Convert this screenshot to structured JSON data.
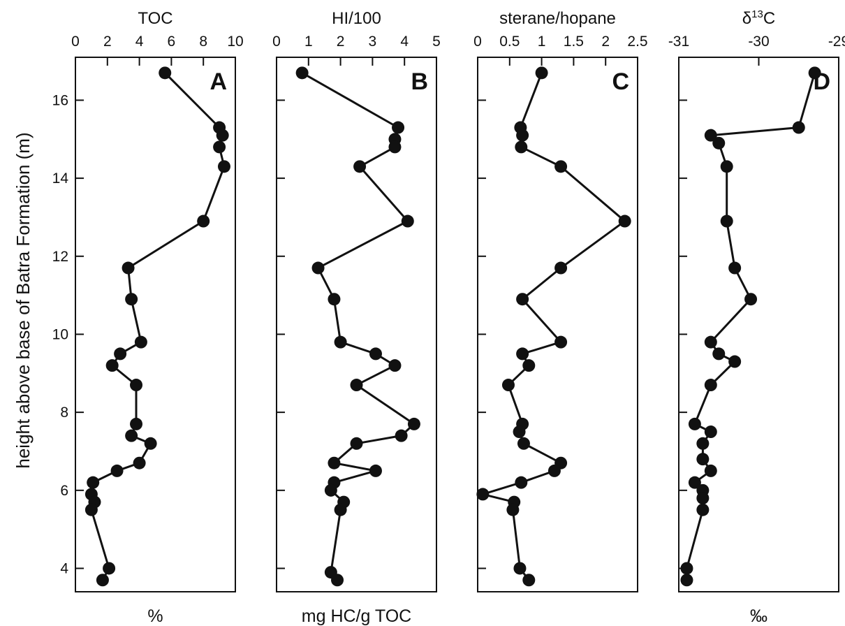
{
  "figure": {
    "ylabel": "height above base of Batra Formation (m)"
  },
  "chart_data": [
    {
      "type": "line",
      "panel": "A",
      "title": "TOC",
      "xlabel": "%",
      "ylabel": "height above base of Batra Formation (m)",
      "xlim": [
        0,
        10
      ],
      "xticks": [
        "0",
        "2",
        "4",
        "6",
        "8",
        "10"
      ],
      "ylim": [
        3.4,
        17.1
      ],
      "yticks": [
        "4",
        "6",
        "8",
        "10",
        "12",
        "14",
        "16"
      ],
      "grid": false,
      "series": [
        {
          "x": [
            5.6,
            9.0,
            9.2,
            9.0,
            9.3,
            8.0,
            3.3,
            3.5,
            4.1,
            2.8,
            2.3,
            3.8,
            3.8,
            3.5,
            4.7,
            4.0,
            2.6,
            1.1,
            1.0,
            1.2,
            1.0,
            2.1,
            1.7
          ],
          "y": [
            16.7,
            15.3,
            15.1,
            14.8,
            14.3,
            12.9,
            11.7,
            10.9,
            9.8,
            9.5,
            9.2,
            8.7,
            7.7,
            7.4,
            7.2,
            6.7,
            6.5,
            6.2,
            5.9,
            5.7,
            5.5,
            4.0,
            3.7
          ]
        }
      ]
    },
    {
      "type": "line",
      "panel": "B",
      "title": "HI/100",
      "xlabel": "mg HC/g TOC",
      "ylim": [
        3.4,
        17.1
      ],
      "xlim": [
        0,
        5
      ],
      "xticks": [
        "0",
        "1",
        "2",
        "3",
        "4",
        "5"
      ],
      "grid": false,
      "series": [
        {
          "x": [
            0.8,
            3.8,
            3.7,
            3.7,
            2.6,
            4.1,
            1.3,
            1.8,
            2.0,
            3.1,
            3.7,
            2.5,
            4.3,
            3.9,
            2.5,
            1.8,
            3.1,
            1.8,
            1.7,
            2.1,
            2.0,
            1.7,
            1.9
          ],
          "y": [
            16.7,
            15.3,
            15.0,
            14.8,
            14.3,
            12.9,
            11.7,
            10.9,
            9.8,
            9.5,
            9.2,
            8.7,
            7.7,
            7.4,
            7.2,
            6.7,
            6.5,
            6.2,
            6.0,
            5.7,
            5.5,
            3.9,
            3.7
          ]
        }
      ]
    },
    {
      "type": "line",
      "panel": "C",
      "title": "sterane/hopane",
      "xlabel": "",
      "ylim": [
        3.4,
        17.1
      ],
      "xlim": [
        0,
        2.5
      ],
      "xticks": [
        "0",
        "0.5",
        "1",
        "1.5",
        "2",
        "2.5"
      ],
      "grid": false,
      "series": [
        {
          "x": [
            1.0,
            0.67,
            0.7,
            0.68,
            1.3,
            2.3,
            1.3,
            0.7,
            1.3,
            0.7,
            0.8,
            0.48,
            0.7,
            0.65,
            0.72,
            1.3,
            1.2,
            0.68,
            0.08,
            0.57,
            0.55,
            0.66,
            0.8
          ],
          "y": [
            16.7,
            15.3,
            15.1,
            14.8,
            14.3,
            12.9,
            11.7,
            10.9,
            9.8,
            9.5,
            9.2,
            8.7,
            7.7,
            7.5,
            7.2,
            6.7,
            6.5,
            6.2,
            5.9,
            5.7,
            5.5,
            4.0,
            3.7
          ]
        }
      ]
    },
    {
      "type": "line",
      "panel": "D",
      "title": "δ13C",
      "xlabel": "‰",
      "ylim": [
        3.4,
        17.1
      ],
      "xlim": [
        -31,
        -29
      ],
      "xticks": [
        "-31",
        "-30",
        "-29"
      ],
      "grid": false,
      "series": [
        {
          "x": [
            -29.3,
            -29.5,
            -30.6,
            -30.5,
            -30.4,
            -30.4,
            -30.3,
            -30.1,
            -30.6,
            -30.5,
            -30.3,
            -30.6,
            -30.8,
            -30.6,
            -30.7,
            -30.7,
            -30.6,
            -30.8,
            -30.7,
            -30.7,
            -30.7,
            -30.9,
            -30.9
          ],
          "y": [
            16.7,
            15.3,
            15.1,
            14.9,
            14.3,
            12.9,
            11.7,
            10.9,
            9.8,
            9.5,
            9.3,
            8.7,
            7.7,
            7.5,
            7.2,
            6.8,
            6.5,
            6.2,
            6.0,
            5.8,
            5.5,
            4.0,
            3.7
          ]
        }
      ]
    }
  ]
}
